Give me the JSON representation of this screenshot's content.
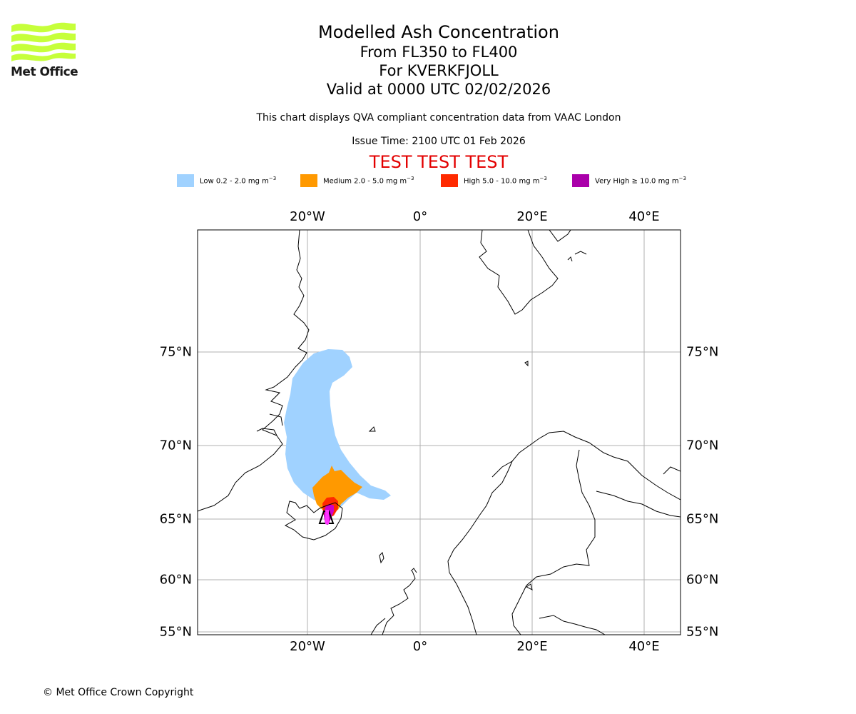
{
  "branding": {
    "logo_text": "Met Office",
    "logo_color": "#c6ff3a"
  },
  "titles": {
    "line1": "Modelled Ash Concentration",
    "line2": "From FL350 to FL400",
    "line3": "For KVERKFJOLL",
    "line4": "Valid at 0000 UTC 02/02/2026"
  },
  "info": {
    "compliance": "This chart displays QVA compliant concentration data from VAAC London",
    "issue_time": "Issue Time: 2100 UTC 01 Feb 2026"
  },
  "test_banner": {
    "text": "TEST TEST TEST",
    "color": "#e30000"
  },
  "legend": [
    {
      "label": "Low 0.2 - 2.0 mg m",
      "unit_sup": "−3",
      "color": "#a0d2ff"
    },
    {
      "label": "Medium 2.0 - 5.0 mg m",
      "unit_sup": "−3",
      "color": "#ff9900"
    },
    {
      "label": "High 5.0 - 10.0 mg m",
      "unit_sup": "−3",
      "color": "#ff2a00"
    },
    {
      "label": "Very High  ≥  10.0 mg m",
      "unit_sup": "−3",
      "color": "#aa00aa"
    }
  ],
  "axes": {
    "longitude_labels": [
      "20°W",
      "0°",
      "20°E",
      "40°E"
    ],
    "latitude_labels": [
      "75°N",
      "70°N",
      "65°N",
      "60°N",
      "55°N"
    ]
  },
  "footer": {
    "copyright": "© Met Office Crown Copyright"
  }
}
